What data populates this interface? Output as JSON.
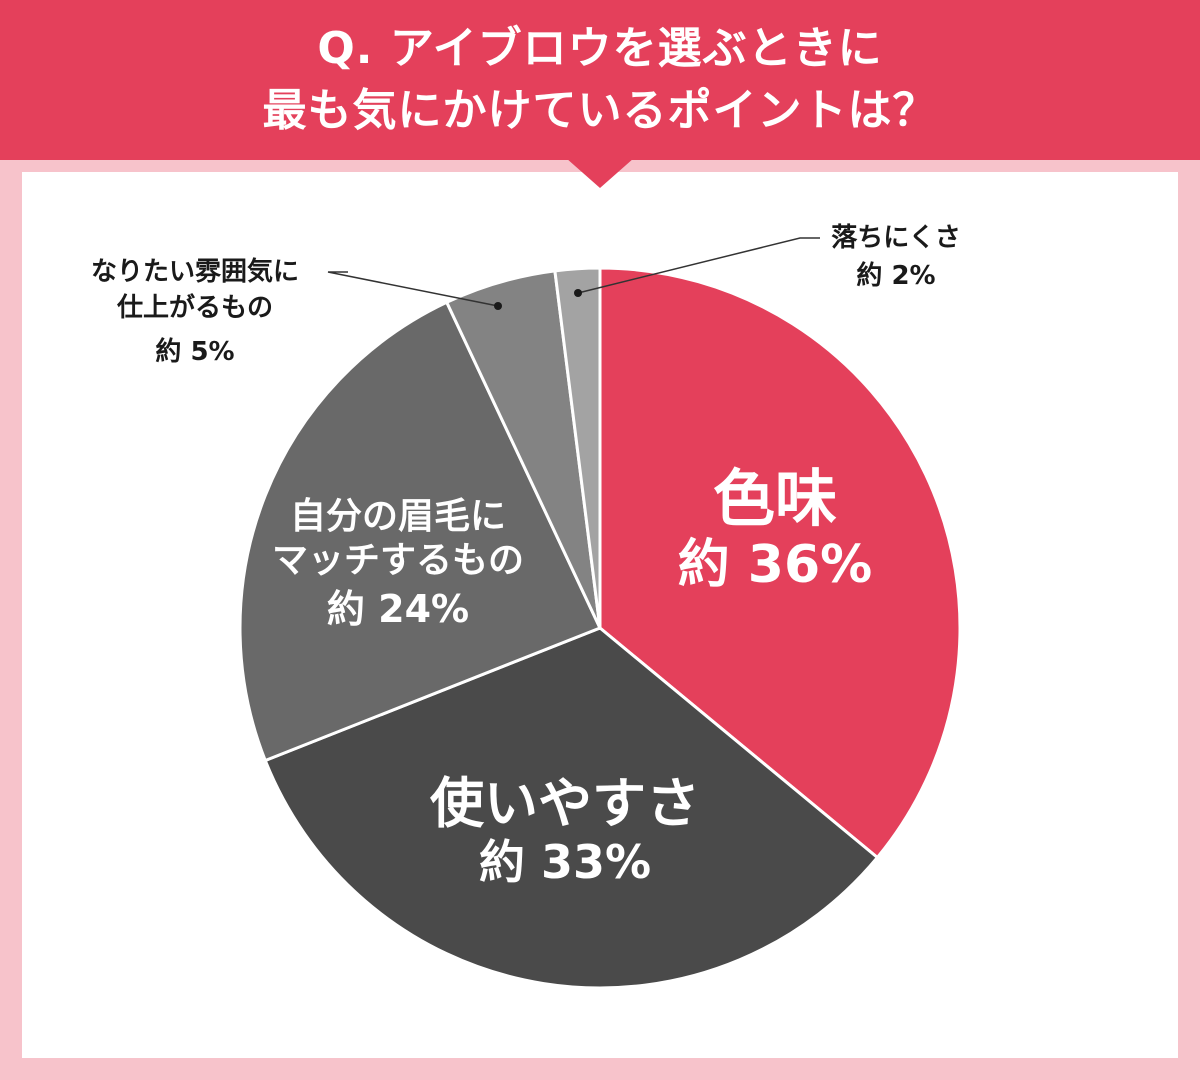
{
  "header": {
    "title_line1": "Q. アイブロウを選ぶときに",
    "title_line2": "最も気にかけているポイントは？"
  },
  "colors": {
    "background": "#f7c3cb",
    "header": "#e4405b",
    "slices": [
      "#e4405b",
      "#4a4a4a",
      "#696969",
      "#838383",
      "#a3a3a3"
    ],
    "separator": "#ffffff"
  },
  "chart_data": {
    "type": "pie",
    "start_angle_deg": 0,
    "direction": "clockwise",
    "slices": [
      {
        "label_lines": [
          "色味"
        ],
        "value": 36,
        "value_label": "約 36%"
      },
      {
        "label_lines": [
          "使いやすさ"
        ],
        "value": 33,
        "value_label": "約 33%"
      },
      {
        "label_lines": [
          "自分の眉毛に",
          "マッチするもの"
        ],
        "value": 24,
        "value_label": "約 24%"
      },
      {
        "label_lines": [
          "なりたい雰囲気に",
          "仕上がるもの"
        ],
        "value": 5,
        "value_label": "約 5%"
      },
      {
        "label_lines": [
          "落ちにくさ"
        ],
        "value": 2,
        "value_label": "約 2%"
      }
    ]
  }
}
